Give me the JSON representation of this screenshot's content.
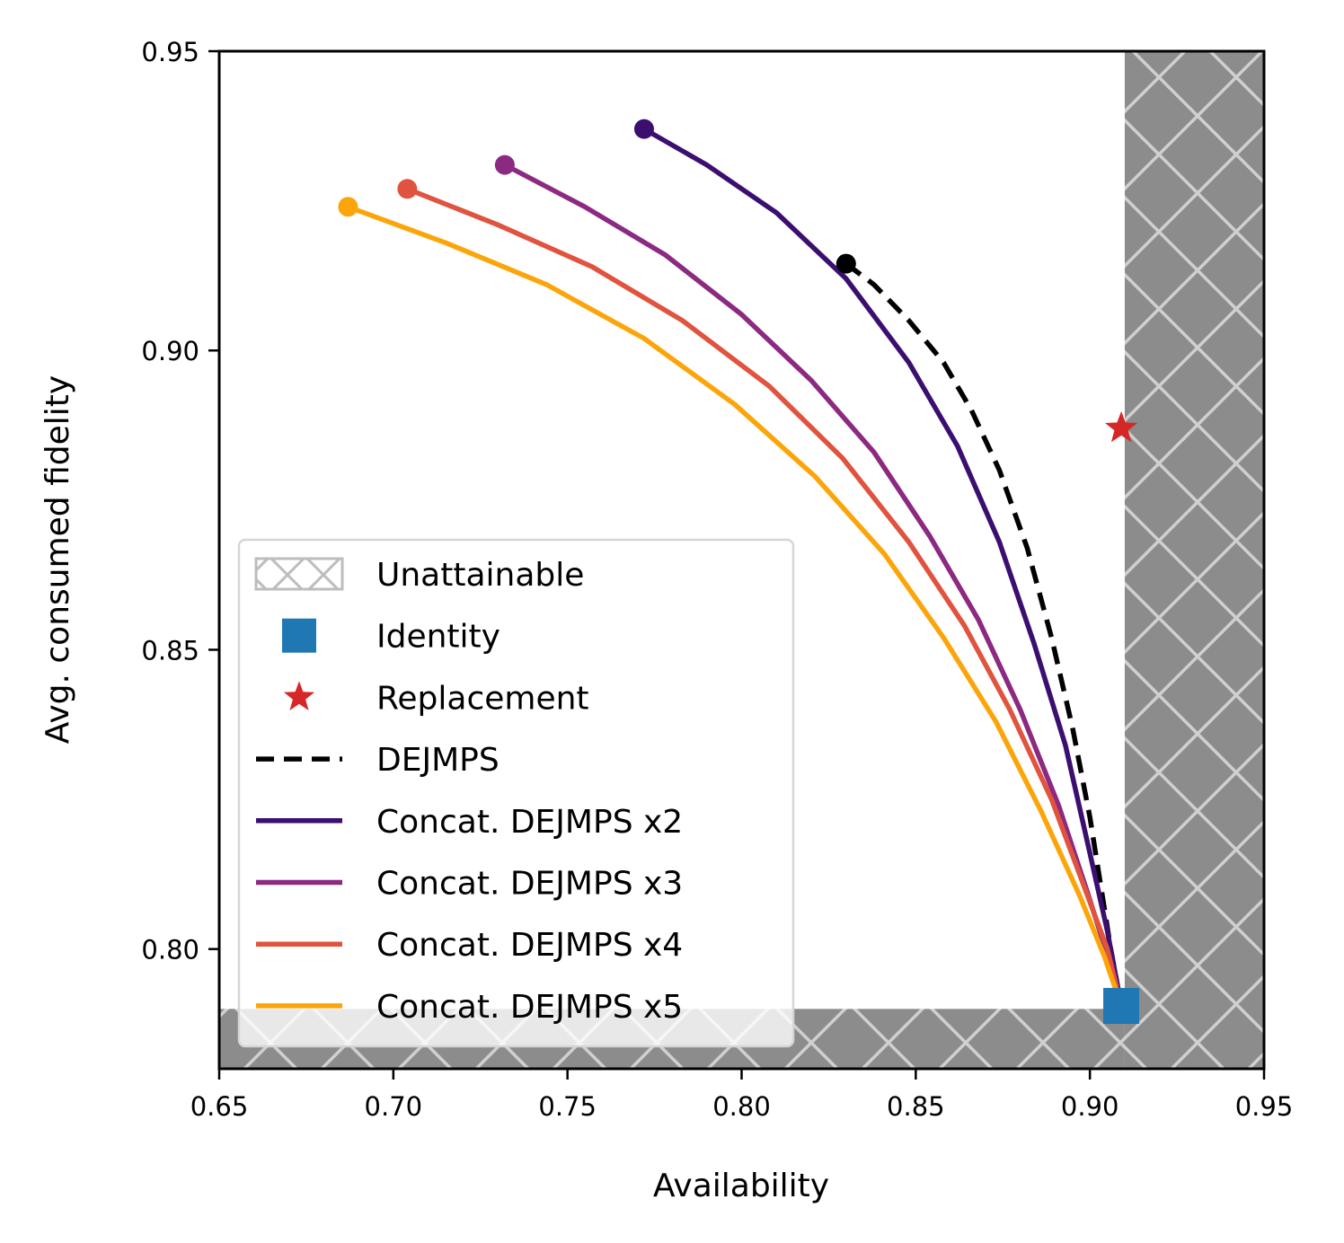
{
  "chart_data": {
    "type": "line",
    "xlabel": "Availability",
    "ylabel": "Avg. consumed fidelity",
    "xlim": [
      0.65,
      0.95
    ],
    "ylim": [
      0.78,
      0.95
    ],
    "xticks": [
      "0.65",
      "0.70",
      "0.75",
      "0.80",
      "0.85",
      "0.90",
      "0.95"
    ],
    "yticks": [
      "0.80",
      "0.85",
      "0.90",
      "0.95"
    ],
    "grid": false,
    "legend_position": "lower-left",
    "unattainable": {
      "name": "Unattainable",
      "x_min": 0.91,
      "y_max": 0.79,
      "fill_color": "#8c8c8c",
      "hatch_color": "#d0d0d0"
    },
    "points": [
      {
        "name": "Identity",
        "marker": "square",
        "color": "#1f77b4",
        "x": 0.909,
        "y": 0.7905
      },
      {
        "name": "Replacement",
        "marker": "star",
        "color": "#d62728",
        "x": 0.909,
        "y": 0.887
      }
    ],
    "series": [
      {
        "name": "DEJMPS",
        "color": "#000000",
        "dashed": true,
        "endpoint_marker": true,
        "x": [
          0.83,
          0.838,
          0.848,
          0.858,
          0.866,
          0.874,
          0.882,
          0.889,
          0.895,
          0.9,
          0.903,
          0.906,
          0.909
        ],
        "y": [
          0.9145,
          0.911,
          0.905,
          0.898,
          0.89,
          0.88,
          0.867,
          0.852,
          0.837,
          0.822,
          0.811,
          0.8,
          0.7905
        ]
      },
      {
        "name": "Concat. DEJMPS x2",
        "color": "#3b0f70",
        "dashed": false,
        "endpoint_marker": true,
        "x": [
          0.772,
          0.79,
          0.81,
          0.83,
          0.848,
          0.862,
          0.874,
          0.884,
          0.893,
          0.9,
          0.905,
          0.909
        ],
        "y": [
          0.937,
          0.931,
          0.923,
          0.912,
          0.898,
          0.884,
          0.868,
          0.851,
          0.834,
          0.816,
          0.803,
          0.7905
        ]
      },
      {
        "name": "Concat. DEJMPS x3",
        "color": "#8c2981",
        "dashed": false,
        "endpoint_marker": true,
        "x": [
          0.732,
          0.755,
          0.778,
          0.8,
          0.82,
          0.838,
          0.854,
          0.868,
          0.88,
          0.891,
          0.899,
          0.905,
          0.909
        ],
        "y": [
          0.931,
          0.924,
          0.916,
          0.906,
          0.895,
          0.883,
          0.869,
          0.855,
          0.84,
          0.824,
          0.81,
          0.799,
          0.7905
        ]
      },
      {
        "name": "Concat. DEJMPS x4",
        "color": "#e0533f",
        "dashed": false,
        "endpoint_marker": true,
        "x": [
          0.704,
          0.73,
          0.757,
          0.783,
          0.808,
          0.829,
          0.848,
          0.864,
          0.877,
          0.889,
          0.898,
          0.905,
          0.909
        ],
        "y": [
          0.927,
          0.921,
          0.914,
          0.905,
          0.894,
          0.882,
          0.868,
          0.854,
          0.84,
          0.825,
          0.811,
          0.8,
          0.7905
        ]
      },
      {
        "name": "Concat. DEJMPS x5",
        "color": "#fca50a",
        "dashed": false,
        "endpoint_marker": true,
        "x": [
          0.687,
          0.715,
          0.744,
          0.772,
          0.798,
          0.821,
          0.841,
          0.858,
          0.873,
          0.886,
          0.897,
          0.904,
          0.909
        ],
        "y": [
          0.924,
          0.918,
          0.911,
          0.902,
          0.891,
          0.879,
          0.866,
          0.852,
          0.838,
          0.823,
          0.809,
          0.799,
          0.7905
        ]
      }
    ],
    "legend": [
      {
        "label": "Unattainable",
        "kind": "hatch"
      },
      {
        "label": "Identity",
        "kind": "square",
        "color": "#1f77b4"
      },
      {
        "label": "Replacement",
        "kind": "star",
        "color": "#d62728"
      },
      {
        "label": "DEJMPS",
        "kind": "dashed",
        "color": "#000000"
      },
      {
        "label": "Concat. DEJMPS x2",
        "kind": "line",
        "color": "#3b0f70"
      },
      {
        "label": "Concat. DEJMPS x3",
        "kind": "line",
        "color": "#8c2981"
      },
      {
        "label": "Concat. DEJMPS x4",
        "kind": "line",
        "color": "#e0533f"
      },
      {
        "label": "Concat. DEJMPS x5",
        "kind": "line",
        "color": "#fca50a"
      }
    ]
  }
}
